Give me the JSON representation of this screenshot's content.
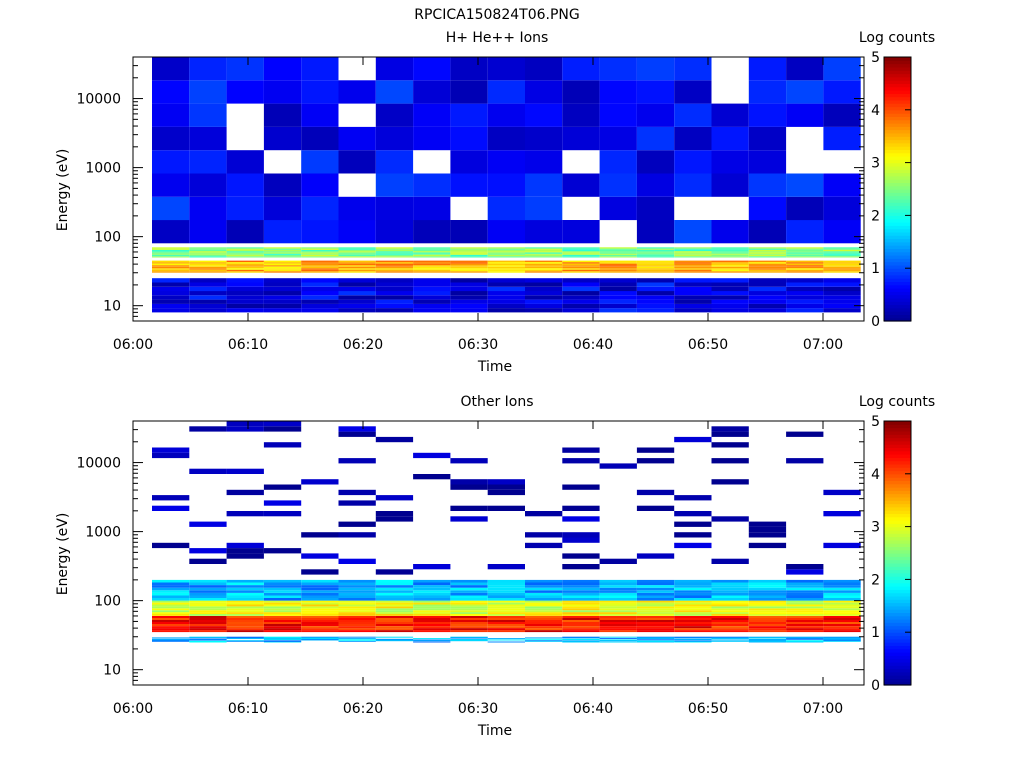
{
  "figure_title": "RPCICA150824T06.PNG",
  "colorscale": [
    "#00008f",
    "#0000ff",
    "#0080ff",
    "#00ffff",
    "#80ff80",
    "#ffff00",
    "#ff8000",
    "#ff0000",
    "#800000"
  ],
  "chart_data": [
    {
      "type": "heatmap",
      "title": "H+ He++ Ions",
      "xlabel": "Time",
      "ylabel": "Energy (eV)",
      "x_ticks": [
        "06:00",
        "06:10",
        "06:20",
        "06:30",
        "06:40",
        "06:50",
        "07:00"
      ],
      "y_ticks": [
        "10",
        "100",
        "1000",
        "10000"
      ],
      "y_scale": "log",
      "ylim": [
        6,
        40000
      ],
      "colorbar": {
        "label": "Log counts",
        "ticks": [
          "0",
          "1",
          "2",
          "3",
          "4",
          "5"
        ],
        "range": [
          0,
          5
        ]
      },
      "time_bins": [
        "06:02",
        "06:06",
        "06:09",
        "06:12",
        "06:15",
        "06:18",
        "06:22",
        "06:25",
        "06:28",
        "06:31",
        "06:34",
        "06:38",
        "06:41",
        "06:44",
        "06:47",
        "06:50",
        "06:54",
        "06:57",
        "07:00"
      ],
      "energy_bands_eV": [
        {
          "band": "8-25 eV",
          "log_counts": 0.5
        },
        {
          "band": "30-45 eV",
          "log_counts": 3.5
        },
        {
          "band": "50-70 eV",
          "log_counts": 2.5
        },
        {
          "band": "80-40000 eV",
          "log_counts": 0.6
        }
      ]
    },
    {
      "type": "heatmap",
      "title": "Other Ions",
      "xlabel": "Time",
      "ylabel": "Energy (eV)",
      "x_ticks": [
        "06:00",
        "06:10",
        "06:20",
        "06:30",
        "06:40",
        "06:50",
        "07:00"
      ],
      "y_ticks": [
        "10",
        "100",
        "1000",
        "10000"
      ],
      "y_scale": "log",
      "ylim": [
        6,
        40000
      ],
      "colorbar": {
        "label": "Log counts",
        "ticks": [
          "0",
          "1",
          "2",
          "3",
          "4",
          "5"
        ],
        "range": [
          0,
          5
        ]
      },
      "time_bins": [
        "06:02",
        "06:06",
        "06:09",
        "06:12",
        "06:15",
        "06:18",
        "06:22",
        "06:25",
        "06:28",
        "06:31",
        "06:34",
        "06:38",
        "06:41",
        "06:44",
        "06:47",
        "06:50",
        "06:54",
        "06:57",
        "07:00"
      ],
      "energy_bands_eV": [
        {
          "band": "25-30 eV",
          "log_counts": 1.5
        },
        {
          "band": "35-60 eV",
          "log_counts": 4.3
        },
        {
          "band": "60-100 eV",
          "log_counts": 3.0
        },
        {
          "band": "100-200 eV",
          "log_counts": 1.5
        },
        {
          "band": "200-40000 eV",
          "log_counts": 0.1
        }
      ]
    }
  ]
}
